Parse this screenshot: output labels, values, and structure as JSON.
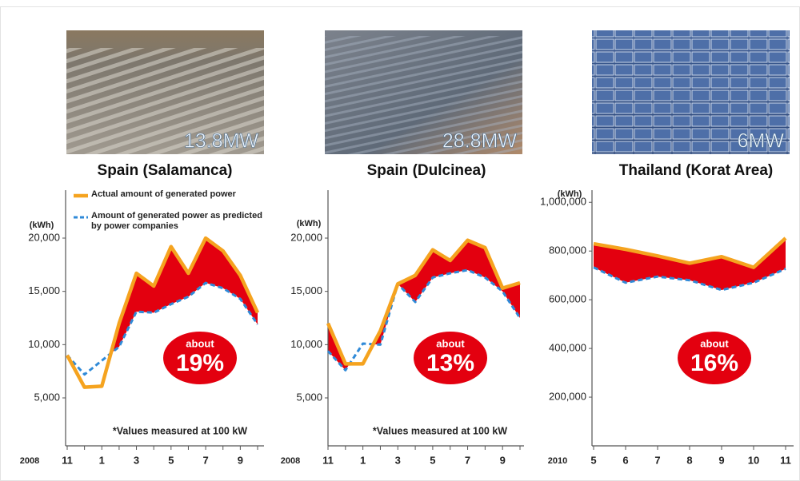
{
  "chart_data": [
    {
      "type": "line",
      "title": "Spain (Salamanca)",
      "photo_label": "13.8MW",
      "ylabel": "(kWh)",
      "xlabel": "2008",
      "categories": [
        "11",
        null,
        "1",
        null,
        "3",
        null,
        "5",
        null,
        "7",
        null,
        "9",
        null
      ],
      "series": [
        {
          "name": "Actual amount of generated power",
          "color": "#f5a31f",
          "dashed": false,
          "values": [
            9000,
            6000,
            6100,
            12000,
            16700,
            15500,
            19200,
            16700,
            20000,
            18800,
            16500,
            13000
          ]
        },
        {
          "name": "Amount of generated power as predicted by power companies",
          "color": "#2f8ad8",
          "dashed": true,
          "values": [
            9000,
            7200,
            8500,
            9800,
            13100,
            13000,
            13800,
            14500,
            15800,
            15300,
            14300,
            11900
          ]
        }
      ],
      "fill_color": "#e3000f",
      "ylim": [
        500,
        24500
      ],
      "yticks": [
        {
          "value": 5000,
          "label": "5,000"
        },
        {
          "value": 10000,
          "label": "10,000"
        },
        {
          "value": 15000,
          "label": "15,000"
        },
        {
          "value": 20000,
          "label": "20,000"
        }
      ],
      "legend": true,
      "annotation": [
        "about",
        "19%"
      ],
      "note": "*Values measured at 100 kW"
    },
    {
      "type": "line",
      "title": "Spain (Dulcinea)",
      "photo_label": "28.8MW",
      "ylabel": "(kWh)",
      "xlabel": "2008",
      "categories": [
        "11",
        null,
        "1",
        null,
        "3",
        null,
        "5",
        null,
        "7",
        null,
        "9",
        null
      ],
      "series": [
        {
          "color": "#f5a31f",
          "dashed": false,
          "values": [
            12000,
            8200,
            8200,
            11300,
            15700,
            16500,
            18900,
            17900,
            19800,
            19100,
            15300,
            15800
          ]
        },
        {
          "color": "#2f8ad8",
          "dashed": true,
          "values": [
            9400,
            7600,
            10100,
            10000,
            15700,
            14000,
            16300,
            16700,
            17000,
            16300,
            15000,
            12500
          ]
        }
      ],
      "fill_color": "#e3000f",
      "ylim": [
        500,
        24500
      ],
      "yticks": [
        {
          "value": 5000,
          "label": "5,000"
        },
        {
          "value": 10000,
          "label": "10,000"
        },
        {
          "value": 15000,
          "label": "15,000"
        },
        {
          "value": 20000,
          "label": "20,000"
        }
      ],
      "legend": false,
      "annotation": [
        "about",
        "13%"
      ],
      "note": "*Values measured at 100 kW"
    },
    {
      "type": "line",
      "title": "Thailand (Korat Area)",
      "photo_label": "6MW",
      "ylabel": "(kWh)",
      "xlabel": "2010",
      "categories": [
        "5",
        "6",
        "7",
        "8",
        "9",
        "10",
        "11"
      ],
      "series": [
        {
          "color": "#f5a31f",
          "dashed": false,
          "values": [
            830000,
            807000,
            780000,
            750000,
            777000,
            733000,
            853000
          ]
        },
        {
          "color": "#2f8ad8",
          "dashed": true,
          "values": [
            733000,
            670000,
            695000,
            680000,
            640000,
            670000,
            727000
          ]
        }
      ],
      "fill_color": "#e3000f",
      "ylim": [
        0,
        1050000
      ],
      "yticks": [
        {
          "value": 200000,
          "label": "200,000"
        },
        {
          "value": 400000,
          "label": "400,000"
        },
        {
          "value": 600000,
          "label": "600,000"
        },
        {
          "value": 800000,
          "label": "800,000"
        },
        {
          "value": 1000000,
          "label": "1,000,000"
        }
      ],
      "legend": false,
      "annotation": [
        "about",
        "16%"
      ]
    }
  ]
}
